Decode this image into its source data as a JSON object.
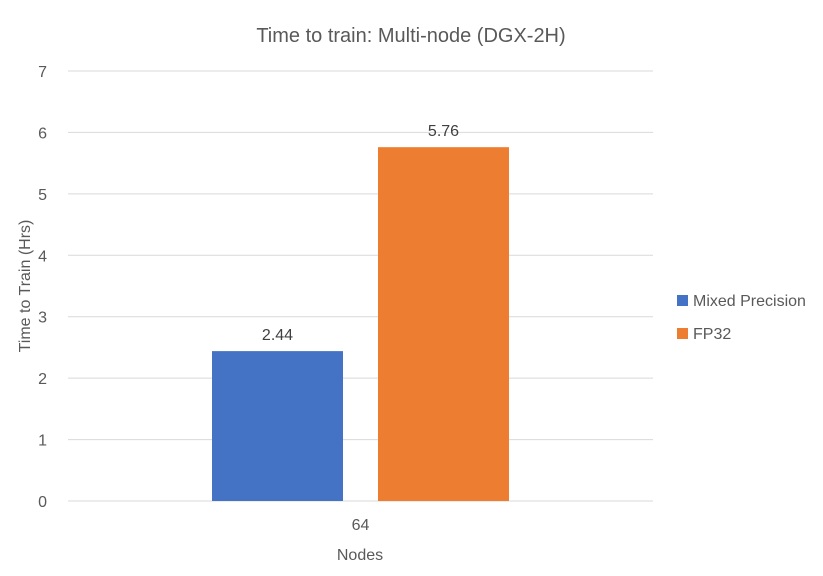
{
  "chart_data": {
    "type": "bar",
    "title": "Time to train: Multi-node (DGX-2H)",
    "xlabel": "Nodes",
    "ylabel": "Time to Train (Hrs)",
    "categories": [
      "64"
    ],
    "series": [
      {
        "name": "Mixed Precision",
        "values": [
          2.44
        ],
        "labels": [
          "2.44"
        ],
        "color": "#4472C4"
      },
      {
        "name": "FP32",
        "values": [
          5.76
        ],
        "labels": [
          "5.76"
        ],
        "color": "#ED7D31"
      }
    ],
    "ylim": [
      0,
      7
    ],
    "yticks": [
      "0",
      "1",
      "2",
      "3",
      "4",
      "5",
      "6",
      "7"
    ],
    "grid": true,
    "legend_position": "right"
  }
}
